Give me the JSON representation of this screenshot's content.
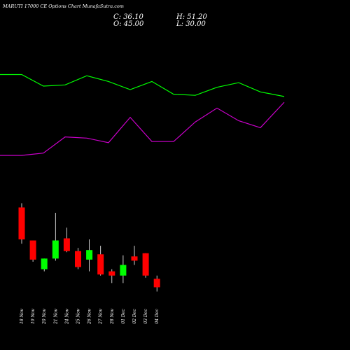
{
  "header": {
    "title": "MARUTI 17000  CE Options  Chart MunafaSutra.com",
    "close": "C: 36.10",
    "open": "O: 45.00",
    "high": "H: 51.20",
    "low": "L: 30.00"
  },
  "colors": {
    "background": "#000000",
    "up": "#00ff00",
    "down": "#ff0000",
    "line_upper": "#00ff00",
    "line_lower": "#cc00cc",
    "wick": "#ffffff",
    "label": "#ffffff"
  },
  "chart_data": [
    {
      "type": "line",
      "y_range": [
        0,
        100
      ],
      "series": [
        {
          "color": "green",
          "values": [
            90,
            90,
            80,
            81,
            89,
            84,
            77,
            84,
            73,
            72,
            79,
            83,
            75,
            71
          ]
        },
        {
          "color": "magenta",
          "values": [
            20,
            20,
            22,
            36,
            35,
            31,
            53,
            32,
            32,
            49,
            61,
            50,
            44,
            66
          ]
        }
      ]
    },
    {
      "type": "candlestick",
      "y_range": [
        0,
        100
      ],
      "categories": [
        "18 Nov",
        "19 Nov",
        "20 Nov",
        "21 Nov",
        "24 Nov",
        "25 Nov",
        "26 Nov",
        "27 Nov",
        "28 Nov",
        "01 Dec",
        "02 Dec",
        "03 Dec",
        "04 Dec"
      ],
      "candles": [
        {
          "open": 80,
          "high": 84,
          "low": 46,
          "close": 50
        },
        {
          "open": 49,
          "high": 49,
          "low": 29,
          "close": 31
        },
        {
          "open": 22,
          "high": 32,
          "low": 20,
          "close": 32
        },
        {
          "open": 32,
          "high": 75,
          "low": 30,
          "close": 49
        },
        {
          "open": 51,
          "high": 61,
          "low": 38,
          "close": 39
        },
        {
          "open": 39,
          "high": 42,
          "low": 22,
          "close": 24
        },
        {
          "open": 31,
          "high": 50,
          "low": 20,
          "close": 40
        },
        {
          "open": 36,
          "high": 44,
          "low": 16,
          "close": 17
        },
        {
          "open": 20,
          "high": 22,
          "low": 9,
          "close": 16
        },
        {
          "open": 16,
          "high": 35,
          "low": 9,
          "close": 26
        },
        {
          "open": 34,
          "high": 44,
          "low": 26,
          "close": 30
        },
        {
          "open": 37,
          "high": 37,
          "low": 14,
          "close": 16
        },
        {
          "open": 13,
          "high": 16,
          "low": 1,
          "close": 5
        }
      ]
    }
  ]
}
